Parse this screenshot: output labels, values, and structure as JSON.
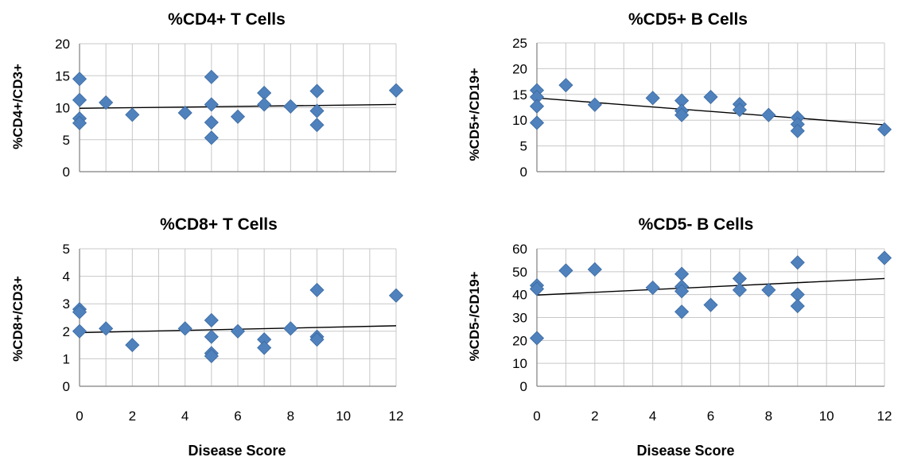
{
  "colors": {
    "marker": "#4f81bd",
    "marker_stroke": "#3b6aa0",
    "trend": "#000000",
    "grid": "#c8c8c8"
  },
  "chart_data": [
    {
      "type": "scatter",
      "title": "%CD4+ T Cells",
      "xlabel": "",
      "ylabel": "%CD4+/CD3+",
      "xlim": [
        0,
        12
      ],
      "ylim": [
        0,
        20
      ],
      "xticks": [
        0,
        2,
        4,
        6,
        8,
        10,
        12
      ],
      "yticks": [
        0,
        5,
        10,
        15,
        20
      ],
      "show_xtick_labels": false,
      "grid": true,
      "points": [
        [
          0,
          14.5
        ],
        [
          0,
          11.2
        ],
        [
          0,
          8.3
        ],
        [
          0,
          7.6
        ],
        [
          1,
          10.8
        ],
        [
          2,
          8.9
        ],
        [
          4,
          9.2
        ],
        [
          5,
          14.8
        ],
        [
          5,
          10.5
        ],
        [
          5,
          7.7
        ],
        [
          5,
          5.3
        ],
        [
          6,
          8.6
        ],
        [
          7,
          12.3
        ],
        [
          7,
          10.5
        ],
        [
          8,
          10.2
        ],
        [
          9,
          12.6
        ],
        [
          9,
          9.5
        ],
        [
          9,
          7.3
        ],
        [
          12,
          12.7
        ]
      ],
      "trendline": {
        "x": [
          0,
          12
        ],
        "y": [
          9.9,
          10.5
        ]
      }
    },
    {
      "type": "scatter",
      "title": "%CD5+ B Cells",
      "xlabel": "",
      "ylabel": "%CD5+/CD19+",
      "xlim": [
        0,
        12
      ],
      "ylim": [
        0,
        25
      ],
      "xticks": [
        0,
        2,
        4,
        6,
        8,
        10,
        12
      ],
      "yticks": [
        0,
        5,
        10,
        15,
        20,
        25
      ],
      "show_xtick_labels": false,
      "grid": true,
      "points": [
        [
          0,
          15.8
        ],
        [
          0,
          14.5
        ],
        [
          0,
          12.7
        ],
        [
          0,
          9.5
        ],
        [
          1,
          16.8
        ],
        [
          2,
          13.0
        ],
        [
          4,
          14.3
        ],
        [
          5,
          13.8
        ],
        [
          5,
          11.8
        ],
        [
          5,
          11.0
        ],
        [
          6,
          14.5
        ],
        [
          7,
          13.1
        ],
        [
          7,
          12.0
        ],
        [
          8,
          11.0
        ],
        [
          9,
          10.5
        ],
        [
          9,
          9.2
        ],
        [
          9,
          7.9
        ],
        [
          12,
          8.2
        ]
      ],
      "trendline": {
        "x": [
          0,
          12
        ],
        "y": [
          14.3,
          9.1
        ]
      }
    },
    {
      "type": "scatter",
      "title": "%CD8+ T Cells",
      "xlabel": "Disease Score",
      "ylabel": "%CD8+/CD3+",
      "xlim": [
        0,
        12
      ],
      "ylim": [
        0,
        5
      ],
      "xticks": [
        0,
        2,
        4,
        6,
        8,
        10,
        12
      ],
      "yticks": [
        0,
        1,
        2,
        3,
        4,
        5
      ],
      "show_xtick_labels": true,
      "grid": true,
      "points": [
        [
          0,
          2.8
        ],
        [
          0,
          2.7
        ],
        [
          0,
          2.0
        ],
        [
          1,
          2.1
        ],
        [
          2,
          1.5
        ],
        [
          4,
          2.1
        ],
        [
          5,
          2.4
        ],
        [
          5,
          1.8
        ],
        [
          5,
          1.2
        ],
        [
          5,
          1.1
        ],
        [
          6,
          2.0
        ],
        [
          7,
          1.7
        ],
        [
          7,
          1.4
        ],
        [
          8,
          2.1
        ],
        [
          9,
          3.5
        ],
        [
          9,
          1.8
        ],
        [
          9,
          1.7
        ],
        [
          12,
          3.3
        ]
      ],
      "trendline": {
        "x": [
          0,
          12
        ],
        "y": [
          1.95,
          2.2
        ]
      }
    },
    {
      "type": "scatter",
      "title": "%CD5- B Cells",
      "xlabel": "Disease Score",
      "ylabel": "%CD5-/CD19+",
      "xlim": [
        0,
        12
      ],
      "ylim": [
        0,
        60
      ],
      "xticks": [
        0,
        2,
        4,
        6,
        8,
        10,
        12
      ],
      "yticks": [
        0,
        10,
        20,
        30,
        40,
        50,
        60
      ],
      "show_xtick_labels": true,
      "grid": true,
      "points": [
        [
          0,
          44
        ],
        [
          0,
          42.5
        ],
        [
          0,
          21
        ],
        [
          1,
          50.5
        ],
        [
          2,
          51
        ],
        [
          4,
          43
        ],
        [
          5,
          49
        ],
        [
          5,
          43.5
        ],
        [
          5,
          41.5
        ],
        [
          5,
          32.5
        ],
        [
          6,
          35.5
        ],
        [
          7,
          47
        ],
        [
          7,
          42
        ],
        [
          8,
          42
        ],
        [
          9,
          54
        ],
        [
          9,
          40
        ],
        [
          9,
          35
        ],
        [
          12,
          56
        ]
      ],
      "trendline": {
        "x": [
          0,
          12
        ],
        "y": [
          39.8,
          47.0
        ]
      }
    }
  ]
}
